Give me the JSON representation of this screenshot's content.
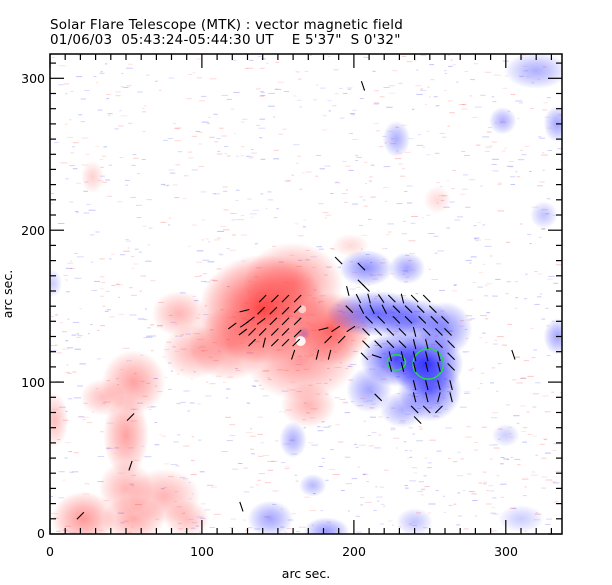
{
  "header": {
    "title": "Solar Flare Telescope (MTK) : vector magnetic field",
    "date": "01/06/03",
    "time_range": "05:43:24-05:44:30 UT",
    "position_ew": "E 5'37\"",
    "position_ns": "S 0'32\""
  },
  "colors": {
    "positive": "#ff3a3a",
    "negative": "#2a2aff",
    "contour": "#22dd44",
    "arrow": "#000000",
    "axis": "#000000"
  },
  "chart_data": {
    "type": "heatmap",
    "title": "Solar Flare Telescope (MTK) : vector magnetic field",
    "xlabel": "arc sec.",
    "ylabel": "arc sec.",
    "xlim": [
      0,
      337
    ],
    "ylim": [
      0,
      316
    ],
    "x_major_ticks": [
      0,
      100,
      200,
      300
    ],
    "y_major_ticks": [
      0,
      100,
      200,
      300
    ],
    "x_tick_labels": [
      "0",
      "100",
      "200",
      "300"
    ],
    "y_tick_labels": [
      "0",
      "100",
      "200",
      "300"
    ],
    "minor_tick_step": 10,
    "legend": "none",
    "positive_polarity_regions": [
      {
        "x": 140,
        "y": 148,
        "rx": 28,
        "ry": 24,
        "strength": 1.0
      },
      {
        "x": 185,
        "y": 135,
        "rx": 18,
        "ry": 16,
        "strength": 0.85
      },
      {
        "x": 160,
        "y": 165,
        "rx": 22,
        "ry": 18,
        "strength": 0.6
      },
      {
        "x": 118,
        "y": 125,
        "rx": 18,
        "ry": 16,
        "strength": 0.55
      },
      {
        "x": 165,
        "y": 115,
        "rx": 25,
        "ry": 18,
        "strength": 0.55
      },
      {
        "x": 85,
        "y": 145,
        "rx": 12,
        "ry": 10,
        "strength": 0.4
      },
      {
        "x": 95,
        "y": 120,
        "rx": 14,
        "ry": 12,
        "strength": 0.4
      },
      {
        "x": 170,
        "y": 85,
        "rx": 12,
        "ry": 10,
        "strength": 0.4
      },
      {
        "x": 55,
        "y": 100,
        "rx": 14,
        "ry": 14,
        "strength": 0.5
      },
      {
        "x": 50,
        "y": 65,
        "rx": 10,
        "ry": 18,
        "strength": 0.5
      },
      {
        "x": 35,
        "y": 90,
        "rx": 10,
        "ry": 8,
        "strength": 0.35
      },
      {
        "x": 50,
        "y": 30,
        "rx": 12,
        "ry": 12,
        "strength": 0.4
      },
      {
        "x": 22,
        "y": 10,
        "rx": 14,
        "ry": 12,
        "strength": 0.55
      },
      {
        "x": 55,
        "y": 10,
        "rx": 14,
        "ry": 10,
        "strength": 0.45
      },
      {
        "x": 75,
        "y": 25,
        "rx": 16,
        "ry": 12,
        "strength": 0.4
      },
      {
        "x": 90,
        "y": 10,
        "rx": 10,
        "ry": 8,
        "strength": 0.35
      },
      {
        "x": 3,
        "y": 75,
        "rx": 6,
        "ry": 12,
        "strength": 0.35
      },
      {
        "x": 28,
        "y": 235,
        "rx": 5,
        "ry": 7,
        "strength": 0.25
      },
      {
        "x": 198,
        "y": 190,
        "rx": 8,
        "ry": 5,
        "strength": 0.2
      },
      {
        "x": 255,
        "y": 220,
        "rx": 6,
        "ry": 6,
        "strength": 0.2
      }
    ],
    "negative_polarity_regions": [
      {
        "x": 248,
        "y": 112,
        "rx": 16,
        "ry": 14,
        "strength": 1.0
      },
      {
        "x": 228,
        "y": 115,
        "rx": 16,
        "ry": 12,
        "strength": 0.85
      },
      {
        "x": 250,
        "y": 95,
        "rx": 14,
        "ry": 14,
        "strength": 0.75
      },
      {
        "x": 215,
        "y": 145,
        "rx": 22,
        "ry": 10,
        "strength": 0.75
      },
      {
        "x": 240,
        "y": 140,
        "rx": 16,
        "ry": 10,
        "strength": 0.6
      },
      {
        "x": 208,
        "y": 175,
        "rx": 12,
        "ry": 8,
        "strength": 0.55
      },
      {
        "x": 235,
        "y": 175,
        "rx": 8,
        "ry": 7,
        "strength": 0.45
      },
      {
        "x": 260,
        "y": 135,
        "rx": 12,
        "ry": 12,
        "strength": 0.55
      },
      {
        "x": 210,
        "y": 95,
        "rx": 10,
        "ry": 10,
        "strength": 0.45
      },
      {
        "x": 232,
        "y": 82,
        "rx": 10,
        "ry": 8,
        "strength": 0.4
      },
      {
        "x": 160,
        "y": 62,
        "rx": 6,
        "ry": 8,
        "strength": 0.4
      },
      {
        "x": 173,
        "y": 32,
        "rx": 6,
        "ry": 5,
        "strength": 0.35
      },
      {
        "x": 145,
        "y": 10,
        "rx": 10,
        "ry": 8,
        "strength": 0.45
      },
      {
        "x": 182,
        "y": 2,
        "rx": 10,
        "ry": 6,
        "strength": 0.5
      },
      {
        "x": 240,
        "y": 8,
        "rx": 8,
        "ry": 6,
        "strength": 0.3
      },
      {
        "x": 228,
        "y": 260,
        "rx": 6,
        "ry": 8,
        "strength": 0.4
      },
      {
        "x": 298,
        "y": 272,
        "rx": 6,
        "ry": 6,
        "strength": 0.4
      },
      {
        "x": 334,
        "y": 270,
        "rx": 6,
        "ry": 8,
        "strength": 0.45
      },
      {
        "x": 320,
        "y": 305,
        "rx": 14,
        "ry": 8,
        "strength": 0.4
      },
      {
        "x": 325,
        "y": 210,
        "rx": 6,
        "ry": 6,
        "strength": 0.3
      },
      {
        "x": 334,
        "y": 130,
        "rx": 6,
        "ry": 8,
        "strength": 0.45
      },
      {
        "x": 310,
        "y": 10,
        "rx": 10,
        "ry": 6,
        "strength": 0.25
      },
      {
        "x": 167,
        "y": 132,
        "rx": 3,
        "ry": 3,
        "strength": 0.25
      },
      {
        "x": 300,
        "y": 65,
        "rx": 6,
        "ry": 5,
        "strength": 0.25
      },
      {
        "x": 2,
        "y": 165,
        "rx": 4,
        "ry": 6,
        "strength": 0.25
      }
    ],
    "transverse_field_vectors": [
      {
        "x": 128,
        "y": 147,
        "dx": 4,
        "dy": 1
      },
      {
        "x": 132,
        "y": 141,
        "dx": -4,
        "dy": -3
      },
      {
        "x": 128,
        "y": 138,
        "dx": -3,
        "dy": -2
      },
      {
        "x": 127,
        "y": 133,
        "dx": -4,
        "dy": -3
      },
      {
        "x": 140,
        "y": 155,
        "dx": 3,
        "dy": 3
      },
      {
        "x": 148,
        "y": 155,
        "dx": 3,
        "dy": 3
      },
      {
        "x": 155,
        "y": 155,
        "dx": 3,
        "dy": 3
      },
      {
        "x": 163,
        "y": 155,
        "dx": 3,
        "dy": 3
      },
      {
        "x": 139,
        "y": 147,
        "dx": 3,
        "dy": 3
      },
      {
        "x": 147,
        "y": 147,
        "dx": 3,
        "dy": 3
      },
      {
        "x": 155,
        "y": 147,
        "dx": 3,
        "dy": 3
      },
      {
        "x": 163,
        "y": 148,
        "dx": 3,
        "dy": 3
      },
      {
        "x": 139,
        "y": 140,
        "dx": -4,
        "dy": -3
      },
      {
        "x": 147,
        "y": 140,
        "dx": -3,
        "dy": -3
      },
      {
        "x": 155,
        "y": 140,
        "dx": -3,
        "dy": -3
      },
      {
        "x": 163,
        "y": 140,
        "dx": -3,
        "dy": -3
      },
      {
        "x": 133,
        "y": 133,
        "dx": -3,
        "dy": -3
      },
      {
        "x": 140,
        "y": 133,
        "dx": -3,
        "dy": -3
      },
      {
        "x": 148,
        "y": 133,
        "dx": -3,
        "dy": -3
      },
      {
        "x": 155,
        "y": 133,
        "dx": -3,
        "dy": -3
      },
      {
        "x": 163,
        "y": 132,
        "dx": -3,
        "dy": -3
      },
      {
        "x": 133,
        "y": 126,
        "dx": -3,
        "dy": -3
      },
      {
        "x": 141,
        "y": 126,
        "dx": -1,
        "dy": -4
      },
      {
        "x": 148,
        "y": 126,
        "dx": -3,
        "dy": -3
      },
      {
        "x": 155,
        "y": 126,
        "dx": -3,
        "dy": -3
      },
      {
        "x": 162,
        "y": 126,
        "dx": -3,
        "dy": -3
      },
      {
        "x": 120,
        "y": 137,
        "dx": -4,
        "dy": -3
      },
      {
        "x": 160,
        "y": 118,
        "dx": -1,
        "dy": -3
      },
      {
        "x": 180,
        "y": 135,
        "dx": -4,
        "dy": -1
      },
      {
        "x": 188,
        "y": 135,
        "dx": 3,
        "dy": 2
      },
      {
        "x": 198,
        "y": 135,
        "dx": 3,
        "dy": 2
      },
      {
        "x": 183,
        "y": 128,
        "dx": -3,
        "dy": -3
      },
      {
        "x": 192,
        "y": 128,
        "dx": -3,
        "dy": -3
      },
      {
        "x": 176,
        "y": 118,
        "dx": -1,
        "dy": -4
      },
      {
        "x": 184,
        "y": 118,
        "dx": -1,
        "dy": -4
      },
      {
        "x": 190,
        "y": 180,
        "dx": 3,
        "dy": -3
      },
      {
        "x": 196,
        "y": 160,
        "dx": 1,
        "dy": -4
      },
      {
        "x": 208,
        "y": 162,
        "dx": 3,
        "dy": -3
      },
      {
        "x": 203,
        "y": 155,
        "dx": 2,
        "dy": -4
      },
      {
        "x": 210,
        "y": 155,
        "dx": 1,
        "dy": -4
      },
      {
        "x": 218,
        "y": 155,
        "dx": 2,
        "dy": -3
      },
      {
        "x": 225,
        "y": 155,
        "dx": 3,
        "dy": -3
      },
      {
        "x": 232,
        "y": 155,
        "dx": 1,
        "dy": -4
      },
      {
        "x": 240,
        "y": 155,
        "dx": 3,
        "dy": -3
      },
      {
        "x": 248,
        "y": 155,
        "dx": 3,
        "dy": -3
      },
      {
        "x": 197,
        "y": 148,
        "dx": 3,
        "dy": -3
      },
      {
        "x": 205,
        "y": 148,
        "dx": 2,
        "dy": -4
      },
      {
        "x": 212,
        "y": 148,
        "dx": -2,
        "dy": 4
      },
      {
        "x": 220,
        "y": 148,
        "dx": 2,
        "dy": -4
      },
      {
        "x": 228,
        "y": 148,
        "dx": 3,
        "dy": -3
      },
      {
        "x": 236,
        "y": 148,
        "dx": 3,
        "dy": -3
      },
      {
        "x": 244,
        "y": 148,
        "dx": 3,
        "dy": -3
      },
      {
        "x": 252,
        "y": 148,
        "dx": 3,
        "dy": -3
      },
      {
        "x": 210,
        "y": 141,
        "dx": 3,
        "dy": -3
      },
      {
        "x": 218,
        "y": 141,
        "dx": 3,
        "dy": -3
      },
      {
        "x": 228,
        "y": 141,
        "dx": 3,
        "dy": -3
      },
      {
        "x": 236,
        "y": 141,
        "dx": 3,
        "dy": -3
      },
      {
        "x": 245,
        "y": 141,
        "dx": 3,
        "dy": -3
      },
      {
        "x": 253,
        "y": 141,
        "dx": 3,
        "dy": -3
      },
      {
        "x": 260,
        "y": 141,
        "dx": 3,
        "dy": -3
      },
      {
        "x": 208,
        "y": 133,
        "dx": 3,
        "dy": -3
      },
      {
        "x": 216,
        "y": 133,
        "dx": 3,
        "dy": -3
      },
      {
        "x": 224,
        "y": 133,
        "dx": 3,
        "dy": -3
      },
      {
        "x": 232,
        "y": 133,
        "dx": 3,
        "dy": -3
      },
      {
        "x": 240,
        "y": 133,
        "dx": 1,
        "dy": -4
      },
      {
        "x": 248,
        "y": 133,
        "dx": 3,
        "dy": -3
      },
      {
        "x": 256,
        "y": 133,
        "dx": 3,
        "dy": -3
      },
      {
        "x": 262,
        "y": 133,
        "dx": 3,
        "dy": -3
      },
      {
        "x": 208,
        "y": 125,
        "dx": 3,
        "dy": -3
      },
      {
        "x": 216,
        "y": 125,
        "dx": 3,
        "dy": -3
      },
      {
        "x": 224,
        "y": 125,
        "dx": 3,
        "dy": -3
      },
      {
        "x": 232,
        "y": 125,
        "dx": 3,
        "dy": -3
      },
      {
        "x": 240,
        "y": 125,
        "dx": 1,
        "dy": -4
      },
      {
        "x": 248,
        "y": 125,
        "dx": 1,
        "dy": -4
      },
      {
        "x": 256,
        "y": 125,
        "dx": 3,
        "dy": -3
      },
      {
        "x": 264,
        "y": 125,
        "dx": 3,
        "dy": -3
      },
      {
        "x": 207,
        "y": 117,
        "dx": 3,
        "dy": -3
      },
      {
        "x": 215,
        "y": 117,
        "dx": 3,
        "dy": -1
      },
      {
        "x": 224,
        "y": 117,
        "dx": 1,
        "dy": -4
      },
      {
        "x": 232,
        "y": 117,
        "dx": 1,
        "dy": -4
      },
      {
        "x": 240,
        "y": 117,
        "dx": 1,
        "dy": -4
      },
      {
        "x": 248,
        "y": 117,
        "dx": 1,
        "dy": -4
      },
      {
        "x": 256,
        "y": 117,
        "dx": 1,
        "dy": -4
      },
      {
        "x": 264,
        "y": 117,
        "dx": 3,
        "dy": -3
      },
      {
        "x": 224,
        "y": 110,
        "dx": 1,
        "dy": -4
      },
      {
        "x": 232,
        "y": 110,
        "dx": 1,
        "dy": -4
      },
      {
        "x": 240,
        "y": 110,
        "dx": 1,
        "dy": -4
      },
      {
        "x": 248,
        "y": 110,
        "dx": 1,
        "dy": -4
      },
      {
        "x": 256,
        "y": 110,
        "dx": 1,
        "dy": -4
      },
      {
        "x": 264,
        "y": 110,
        "dx": 3,
        "dy": -3
      },
      {
        "x": 240,
        "y": 98,
        "dx": 1,
        "dy": -4
      },
      {
        "x": 248,
        "y": 98,
        "dx": 1,
        "dy": -4
      },
      {
        "x": 256,
        "y": 98,
        "dx": 1,
        "dy": -4
      },
      {
        "x": 264,
        "y": 98,
        "dx": 1,
        "dy": -4
      },
      {
        "x": 240,
        "y": 90,
        "dx": 1,
        "dy": -4
      },
      {
        "x": 248,
        "y": 90,
        "dx": 1,
        "dy": -4
      },
      {
        "x": 256,
        "y": 90,
        "dx": -1,
        "dy": -4
      },
      {
        "x": 264,
        "y": 90,
        "dx": 1,
        "dy": -4
      },
      {
        "x": 240,
        "y": 82,
        "dx": 3,
        "dy": -3
      },
      {
        "x": 248,
        "y": 82,
        "dx": 3,
        "dy": -3
      },
      {
        "x": 256,
        "y": 82,
        "dx": -3,
        "dy": -3
      },
      {
        "x": 242,
        "y": 75,
        "dx": 3,
        "dy": -3
      },
      {
        "x": 216,
        "y": 90,
        "dx": 3,
        "dy": -3
      },
      {
        "x": 305,
        "y": 118,
        "dx": 1,
        "dy": -3
      },
      {
        "x": 205,
        "y": 176,
        "dx": 3,
        "dy": -3
      },
      {
        "x": 205,
        "y": 165,
        "dx": 3,
        "dy": -3
      },
      {
        "x": 206,
        "y": 295,
        "dx": 1,
        "dy": -3
      },
      {
        "x": 126,
        "y": 18,
        "dx": 1,
        "dy": -3
      },
      {
        "x": 53,
        "y": 77,
        "dx": 3,
        "dy": 3
      },
      {
        "x": 53,
        "y": 45,
        "dx": 1,
        "dy": 3
      },
      {
        "x": 20,
        "y": 12,
        "dx": 3,
        "dy": 3
      }
    ],
    "contours": [
      {
        "x": 228,
        "y": 113,
        "rx": 6,
        "ry": 5
      },
      {
        "x": 249,
        "y": 112,
        "rx": 10,
        "ry": 10
      }
    ]
  }
}
